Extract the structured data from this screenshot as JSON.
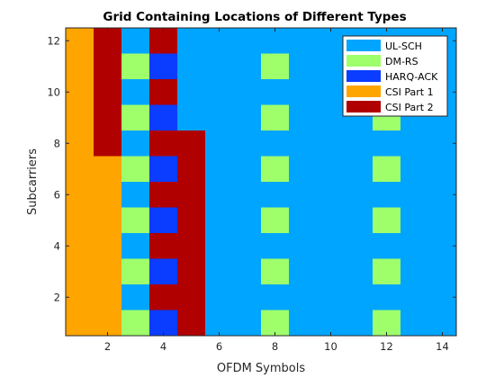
{
  "chart_data": {
    "type": "heatmap",
    "title": "Grid Containing Locations of Different Types",
    "xlabel": "OFDM Symbols",
    "ylabel": "Subcarriers",
    "xlim": [
      0.5,
      14.5
    ],
    "ylim": [
      0.5,
      12.5
    ],
    "xticks": [
      2,
      4,
      6,
      8,
      10,
      12,
      14
    ],
    "yticks": [
      2,
      4,
      6,
      8,
      10,
      12
    ],
    "legend_position": "top-right",
    "categories": [
      {
        "key": "ulsch",
        "name": "UL-SCH",
        "color": "#00a5ff"
      },
      {
        "key": "dmrs",
        "name": "DM-RS",
        "color": "#9eff6b"
      },
      {
        "key": "harq",
        "name": "HARQ-ACK",
        "color": "#0a3dff"
      },
      {
        "key": "csi1",
        "name": "CSI Part 1",
        "color": "#ffa500"
      },
      {
        "key": "csi2",
        "name": "CSI Part 2",
        "color": "#b00000"
      }
    ],
    "x_symbols": [
      1,
      2,
      3,
      4,
      5,
      6,
      7,
      8,
      9,
      10,
      11,
      12,
      13,
      14
    ],
    "y_subcarriers_top_to_bottom": [
      12,
      11,
      10,
      9,
      8,
      7,
      6,
      5,
      4,
      3,
      2,
      1
    ],
    "grid_rows_top_to_bottom": [
      [
        "csi1",
        "csi2",
        "ulsch",
        "csi2",
        "ulsch",
        "ulsch",
        "ulsch",
        "ulsch",
        "ulsch",
        "ulsch",
        "ulsch",
        "ulsch",
        "ulsch",
        "ulsch"
      ],
      [
        "csi1",
        "csi2",
        "dmrs",
        "harq",
        "ulsch",
        "ulsch",
        "ulsch",
        "dmrs",
        "ulsch",
        "ulsch",
        "ulsch",
        "ulsch",
        "ulsch",
        "ulsch"
      ],
      [
        "csi1",
        "csi2",
        "ulsch",
        "csi2",
        "ulsch",
        "ulsch",
        "ulsch",
        "ulsch",
        "ulsch",
        "ulsch",
        "ulsch",
        "ulsch",
        "ulsch",
        "ulsch"
      ],
      [
        "csi1",
        "csi2",
        "dmrs",
        "harq",
        "ulsch",
        "ulsch",
        "ulsch",
        "dmrs",
        "ulsch",
        "ulsch",
        "ulsch",
        "dmrs",
        "ulsch",
        "ulsch"
      ],
      [
        "csi1",
        "csi2",
        "ulsch",
        "csi2",
        "csi2",
        "ulsch",
        "ulsch",
        "ulsch",
        "ulsch",
        "ulsch",
        "ulsch",
        "ulsch",
        "ulsch",
        "ulsch"
      ],
      [
        "csi1",
        "csi1",
        "dmrs",
        "harq",
        "csi2",
        "ulsch",
        "ulsch",
        "dmrs",
        "ulsch",
        "ulsch",
        "ulsch",
        "dmrs",
        "ulsch",
        "ulsch"
      ],
      [
        "csi1",
        "csi1",
        "ulsch",
        "csi2",
        "csi2",
        "ulsch",
        "ulsch",
        "ulsch",
        "ulsch",
        "ulsch",
        "ulsch",
        "ulsch",
        "ulsch",
        "ulsch"
      ],
      [
        "csi1",
        "csi1",
        "dmrs",
        "harq",
        "csi2",
        "ulsch",
        "ulsch",
        "dmrs",
        "ulsch",
        "ulsch",
        "ulsch",
        "dmrs",
        "ulsch",
        "ulsch"
      ],
      [
        "csi1",
        "csi1",
        "ulsch",
        "csi2",
        "csi2",
        "ulsch",
        "ulsch",
        "ulsch",
        "ulsch",
        "ulsch",
        "ulsch",
        "ulsch",
        "ulsch",
        "ulsch"
      ],
      [
        "csi1",
        "csi1",
        "dmrs",
        "harq",
        "csi2",
        "ulsch",
        "ulsch",
        "dmrs",
        "ulsch",
        "ulsch",
        "ulsch",
        "dmrs",
        "ulsch",
        "ulsch"
      ],
      [
        "csi1",
        "csi1",
        "ulsch",
        "csi2",
        "csi2",
        "ulsch",
        "ulsch",
        "ulsch",
        "ulsch",
        "ulsch",
        "ulsch",
        "ulsch",
        "ulsch",
        "ulsch"
      ],
      [
        "csi1",
        "csi1",
        "dmrs",
        "harq",
        "csi2",
        "ulsch",
        "ulsch",
        "dmrs",
        "ulsch",
        "ulsch",
        "ulsch",
        "dmrs",
        "ulsch",
        "ulsch"
      ]
    ]
  }
}
